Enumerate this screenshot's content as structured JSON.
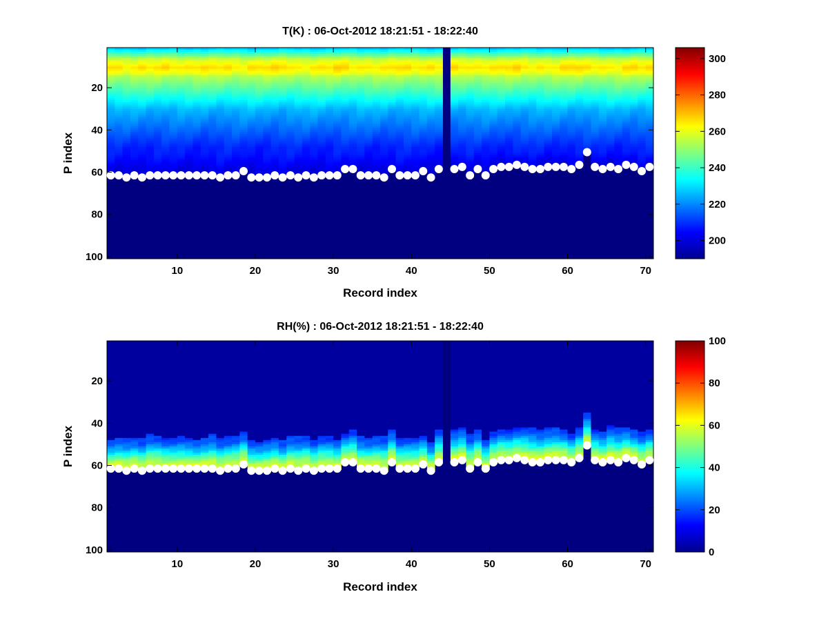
{
  "chart_data": [
    {
      "type": "heatmap",
      "title": "T(K) : 06-Oct-2012 18:21:51 - 18:22:40",
      "xlabel": "Record index",
      "ylabel": "P index",
      "xlim": [
        1,
        71
      ],
      "ylim": [
        1,
        101
      ],
      "y_reversed": true,
      "xticks": [
        "10",
        "20",
        "30",
        "40",
        "50",
        "60",
        "70"
      ],
      "yticks": [
        "20",
        "40",
        "60",
        "80",
        "100"
      ],
      "colormap": "jet",
      "colorbar": {
        "min": 190,
        "max": 306,
        "ticks": [
          "200",
          "220",
          "240",
          "260",
          "280",
          "300"
        ]
      },
      "profile": {
        "top_value": 228,
        "peak_value": 266,
        "peak_p": 10,
        "mid_value": 225,
        "lower_value": 208,
        "fill_value": 190
      },
      "missing_record": 44,
      "surface_points": {
        "x": [
          1,
          2,
          3,
          4,
          5,
          6,
          7,
          8,
          9,
          10,
          11,
          12,
          13,
          14,
          15,
          16,
          17,
          18,
          19,
          20,
          21,
          22,
          23,
          24,
          25,
          26,
          27,
          28,
          29,
          30,
          31,
          32,
          33,
          34,
          35,
          36,
          37,
          38,
          39,
          40,
          41,
          42,
          43,
          45,
          46,
          47,
          48,
          49,
          50,
          51,
          52,
          53,
          54,
          55,
          56,
          57,
          58,
          59,
          60,
          61,
          62,
          63,
          64,
          65,
          66,
          67,
          68,
          69,
          70
        ],
        "y": [
          61,
          61,
          62,
          61,
          62,
          61,
          61,
          61,
          61,
          61,
          61,
          61,
          61,
          61,
          62,
          61,
          61,
          59,
          62,
          62,
          62,
          61,
          62,
          61,
          62,
          61,
          62,
          61,
          61,
          61,
          58,
          58,
          61,
          61,
          61,
          62,
          58,
          61,
          61,
          61,
          59,
          62,
          58,
          58,
          57,
          61,
          58,
          61,
          58,
          57,
          57,
          56,
          57,
          58,
          58,
          57,
          57,
          57,
          58,
          56,
          50,
          57,
          58,
          57,
          58,
          56,
          57,
          59,
          57
        ]
      }
    },
    {
      "type": "heatmap",
      "title": "RH(%) : 06-Oct-2012 18:21:51 - 18:22:40",
      "xlabel": "Record index",
      "ylabel": "P index",
      "xlim": [
        1,
        71
      ],
      "ylim": [
        1,
        101
      ],
      "y_reversed": true,
      "xticks": [
        "10",
        "20",
        "30",
        "40",
        "50",
        "60",
        "70"
      ],
      "yticks": [
        "20",
        "40",
        "60",
        "80",
        "100"
      ],
      "colormap": "jet",
      "colorbar": {
        "min": 0,
        "max": 100,
        "ticks": [
          "0",
          "20",
          "40",
          "60",
          "80",
          "100"
        ]
      },
      "profile": {
        "top_value": 3,
        "band_start_value": 18,
        "band_peak_value": 62,
        "fill_value": 0
      },
      "missing_record": 44,
      "surface_points": {
        "x": [
          1,
          2,
          3,
          4,
          5,
          6,
          7,
          8,
          9,
          10,
          11,
          12,
          13,
          14,
          15,
          16,
          17,
          18,
          19,
          20,
          21,
          22,
          23,
          24,
          25,
          26,
          27,
          28,
          29,
          30,
          31,
          32,
          33,
          34,
          35,
          36,
          37,
          38,
          39,
          40,
          41,
          42,
          43,
          45,
          46,
          47,
          48,
          49,
          50,
          51,
          52,
          53,
          54,
          55,
          56,
          57,
          58,
          59,
          60,
          61,
          62,
          63,
          64,
          65,
          66,
          67,
          68,
          69,
          70
        ],
        "y": [
          61,
          61,
          62,
          61,
          62,
          61,
          61,
          61,
          61,
          61,
          61,
          61,
          61,
          61,
          62,
          61,
          61,
          59,
          62,
          62,
          62,
          61,
          62,
          61,
          62,
          61,
          62,
          61,
          61,
          61,
          58,
          58,
          61,
          61,
          61,
          62,
          58,
          61,
          61,
          61,
          59,
          62,
          58,
          58,
          57,
          61,
          58,
          61,
          58,
          57,
          57,
          56,
          57,
          58,
          58,
          57,
          57,
          57,
          58,
          56,
          50,
          57,
          58,
          57,
          58,
          56,
          57,
          59,
          57
        ]
      }
    }
  ]
}
